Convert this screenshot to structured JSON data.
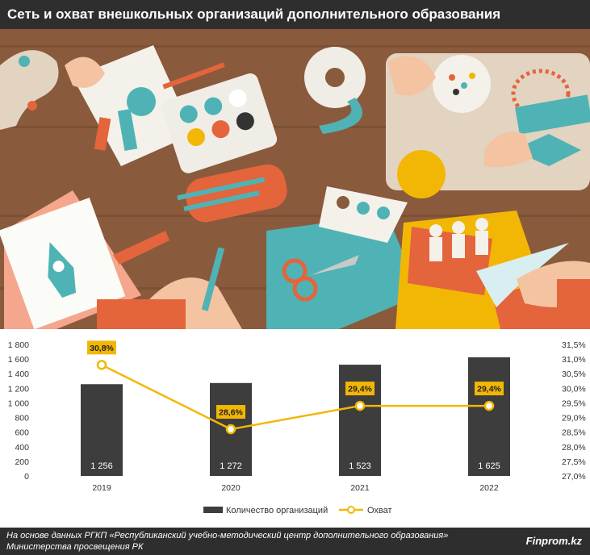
{
  "title": "Сеть и охват внешкольных организаций дополнительного образования",
  "source_note": "На основе данных РГКП «Республиканский учебно-методический центр дополнительного образования» Министерства просвещения РК",
  "brand": "Finprom.kz",
  "colors": {
    "header_bg": "#2e2e2e",
    "bar": "#3d3d3d",
    "line": "#f2b705",
    "label_bg": "#f2b705",
    "background_table": "#8a5a3c"
  },
  "chart_data": {
    "type": "bar",
    "categories": [
      "2019",
      "2020",
      "2021",
      "2022"
    ],
    "series": [
      {
        "name": "Количество организаций",
        "type": "bar",
        "axis": "left",
        "values": [
          1256,
          1272,
          1523,
          1625
        ],
        "labels": [
          "1 256",
          "1 272",
          "1 523",
          "1 625"
        ]
      },
      {
        "name": "Охват",
        "type": "line",
        "axis": "right",
        "values": [
          30.8,
          28.6,
          29.4,
          29.4
        ],
        "labels": [
          "30,8%",
          "28,6%",
          "29,4%",
          "29,4%"
        ]
      }
    ],
    "y_left": {
      "ylim": [
        0,
        1800
      ],
      "ticks": [
        "0",
        "200",
        "400",
        "600",
        "800",
        "1 000",
        "1 200",
        "1 400",
        "1 600",
        "1 800"
      ]
    },
    "y_right": {
      "ylim": [
        27.0,
        31.5
      ],
      "ticks": [
        "27,0%",
        "27,5%",
        "28,0%",
        "28,5%",
        "29,0%",
        "29,5%",
        "30,0%",
        "30,5%",
        "31,0%",
        "31,5%"
      ]
    },
    "legend": {
      "position": "bottom"
    },
    "grid": false
  }
}
